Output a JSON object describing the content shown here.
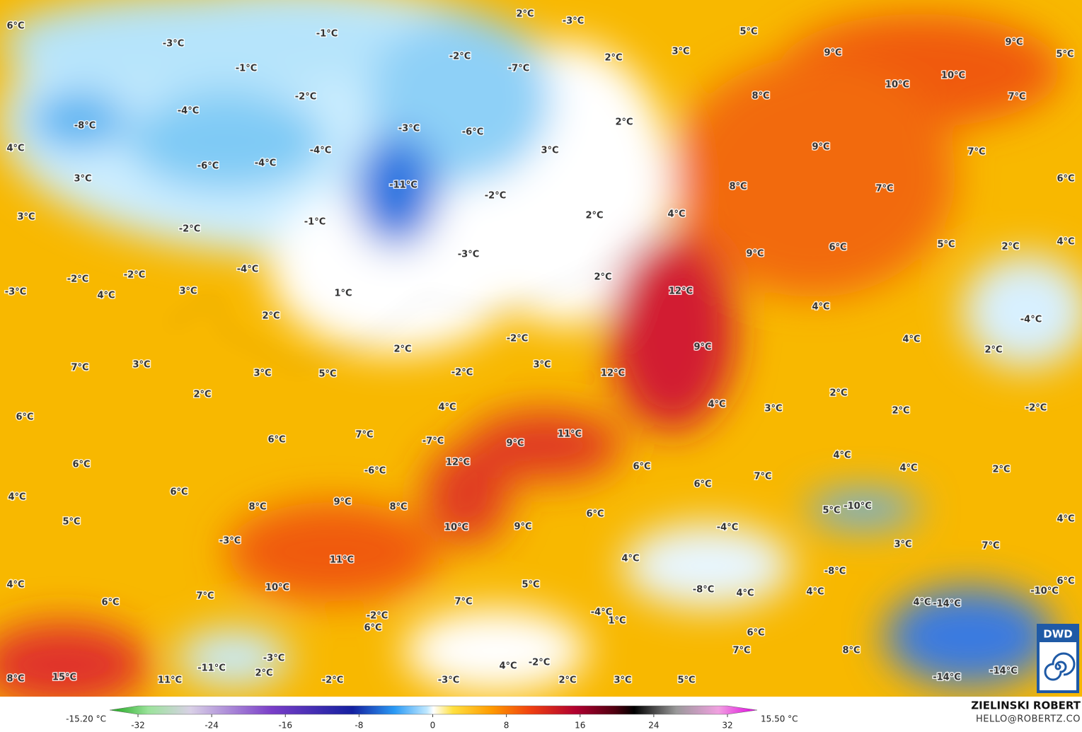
{
  "map": {
    "labels": [
      "6°C",
      "-3°C",
      "-1°C",
      "2°C",
      "-3°C",
      "5°C",
      "9°C",
      "-2°C",
      "-7°C",
      "2°C",
      "3°C",
      "9°C",
      "5°C",
      "-1°C",
      "10°C",
      "-2°C",
      "8°C",
      "10°C",
      "7°C",
      "-8°C",
      "-4°C",
      "-3°C",
      "-6°C",
      "2°C",
      "4°C",
      "-4°C",
      "3°C",
      "9°C",
      "7°C",
      "-6°C",
      "-4°C",
      "-11°C",
      "3°C",
      "8°C",
      "7°C",
      "6°C",
      "-2°C",
      "3°C",
      "-1°C",
      "-2°C",
      "2°C",
      "4°C",
      "-3°C",
      "6°C",
      "9°C",
      "5°C",
      "2°C",
      "4°C",
      "-4°C",
      "-2°C",
      "-2°C",
      "2°C",
      "-3°C",
      "4°C",
      "3°C",
      "1°C",
      "12°C",
      "4°C",
      "-4°C",
      "2°C",
      "-2°C",
      "4°C",
      "9°C",
      "2°C",
      "2°C",
      "7°C",
      "3°C",
      "-2°C",
      "3°C",
      "12°C",
      "5°C",
      "3°C",
      "2°C",
      "2°C",
      "4°C",
      "4°C",
      "3°C",
      "2°C",
      "-2°C",
      "6°C",
      "7°C",
      "6°C",
      "11°C",
      "9°C",
      "-7°C",
      "4°C",
      "12°C",
      "6°C",
      "6°C",
      "4°C",
      "2°C",
      "-6°C",
      "7°C",
      "6°C",
      "6°C",
      "4°C",
      "9°C",
      "8°C",
      "8°C",
      "5°C",
      "-10°C",
      "6°C",
      "5°C",
      "10°C",
      "9°C",
      "-4°C",
      "4°C",
      "-3°C",
      "3°C",
      "7°C",
      "11°C",
      "4°C",
      "-8°C",
      "5°C",
      "-8°C",
      "4°C",
      "10°C",
      "4°C",
      "6°C",
      "-10°C",
      "7°C",
      "6°C",
      "7°C",
      "4°C",
      "4°C",
      "-14°C",
      "-4°C",
      "-2°C",
      "1°C",
      "6°C",
      "6°C",
      "-3°C",
      "7°C",
      "8°C",
      "-11°C",
      "4°C",
      "-2°C",
      "2°C",
      "-14°C",
      "8°C",
      "15°C",
      "11°C",
      "-2°C",
      "-3°C",
      "2°C",
      "3°C",
      "5°C",
      "-14°C"
    ]
  },
  "colorbar": {
    "min_label": "-15.20 °C",
    "max_label": "15.50 °C",
    "ticks": [
      -32,
      -24,
      -16,
      -8,
      0,
      8,
      16,
      24,
      32
    ]
  },
  "credit": {
    "author": "ZIELINSKI ROBERT",
    "email": "HELLO@ROBERTZ.CO",
    "logo": "DWD"
  }
}
